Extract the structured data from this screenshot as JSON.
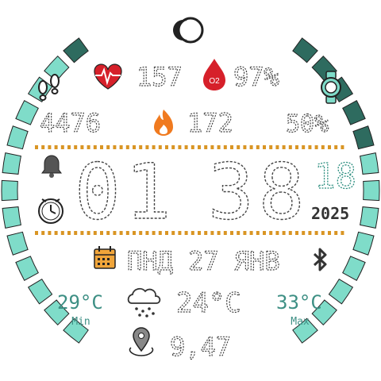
{
  "colors": {
    "accent": "#7fdcc9",
    "accent_dark": "#2e6b5f",
    "teal_text": "#3d8f84",
    "dots": "#d99524",
    "calendar": "#f0a53a",
    "heart": "#d6202a",
    "flame": "#f07a1f",
    "digit_outline": "#444444"
  },
  "icons": {
    "moon": "moon-icon",
    "heart": "heart-pulse-icon",
    "blood_oxygen": "o2-drop-icon",
    "steps": "footprints-icon",
    "watch": "watch-icon",
    "flame": "flame-icon",
    "bell": "bell-icon",
    "stopwatch": "stopwatch-icon",
    "calendar": "calendar-icon",
    "bluetooth": "bluetooth-icon",
    "weather": "cloud-snow-icon",
    "location": "location-pin-icon"
  },
  "health": {
    "heart_rate": "157",
    "spo2": "97%",
    "o2_label": "O2"
  },
  "activity": {
    "steps": "4476",
    "calories": "172",
    "battery": "50%"
  },
  "time": {
    "hours": "01",
    "minutes": "38",
    "seconds": "18",
    "year": "2025"
  },
  "date": {
    "text": "ПНД 27 ЯНВ"
  },
  "weather": {
    "min_temp": "29°C",
    "min_label": "Min",
    "current_temp": "24°C",
    "max_temp": "33°C",
    "max_label": "Max"
  },
  "distance": {
    "value": "9,47"
  },
  "gauges": {
    "left_level": 0.05,
    "right_level": 0.35
  }
}
